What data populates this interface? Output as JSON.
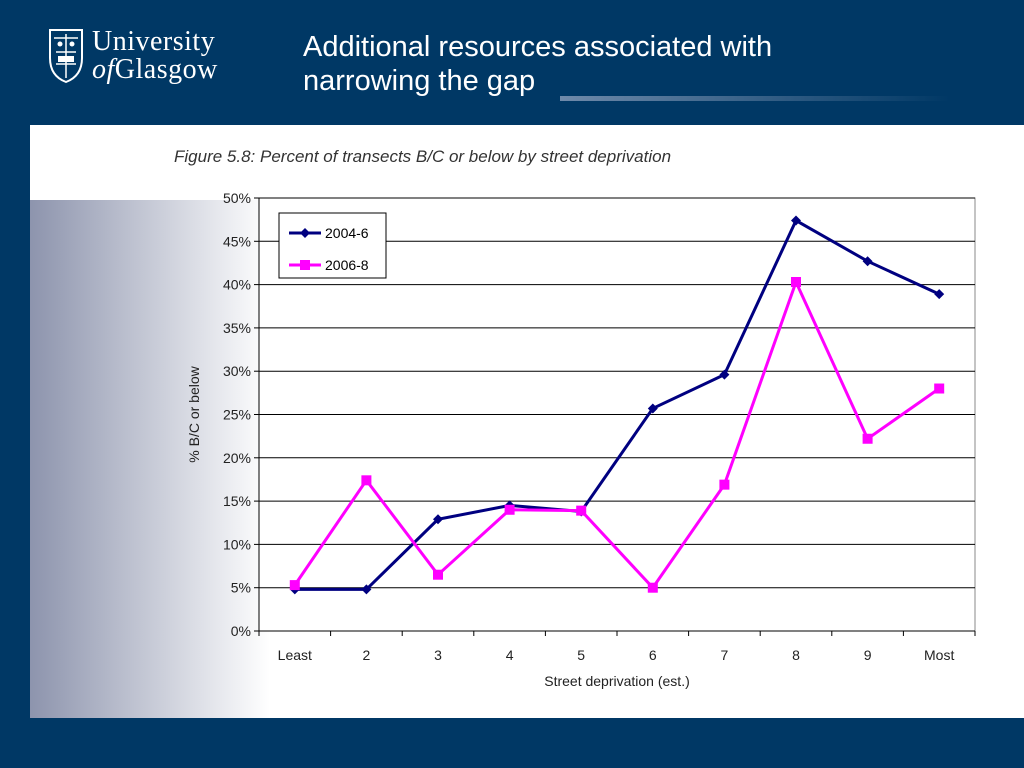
{
  "header": {
    "logo": {
      "line1": "University",
      "line2_of": "of",
      "line2_rest": "Glasgow"
    },
    "title_line1": "Additional resources associated with",
    "title_line2": "narrowing the gap"
  },
  "figure": {
    "caption": "Figure 5.8:  Percent of transects B/C or below by street deprivation"
  },
  "colors": {
    "background": "#003865",
    "series_2004": "#000080",
    "series_2006": "#ff00ff"
  },
  "chart_data": {
    "type": "line",
    "title": "Figure 5.8:  Percent of transects B/C or below by street deprivation",
    "xlabel": "Street deprivation (est.)",
    "ylabel": "% B/C or below",
    "categories": [
      "Least",
      "2",
      "3",
      "4",
      "5",
      "6",
      "7",
      "8",
      "9",
      "Most"
    ],
    "ylim": [
      0,
      50
    ],
    "yticks": [
      "0%",
      "5%",
      "10%",
      "15%",
      "20%",
      "25%",
      "30%",
      "35%",
      "40%",
      "45%",
      "50%"
    ],
    "grid": true,
    "legend_position": "top-left",
    "series": [
      {
        "name": "2004-6",
        "marker": "diamond",
        "color": "#000080",
        "values": [
          4.8,
          4.8,
          12.9,
          14.5,
          13.8,
          25.7,
          29.6,
          47.4,
          42.7,
          38.9
        ]
      },
      {
        "name": "2006-8",
        "marker": "square",
        "color": "#ff00ff",
        "values": [
          5.3,
          17.4,
          6.5,
          14.0,
          13.9,
          5.0,
          16.9,
          40.3,
          22.2,
          28.0
        ]
      }
    ]
  }
}
